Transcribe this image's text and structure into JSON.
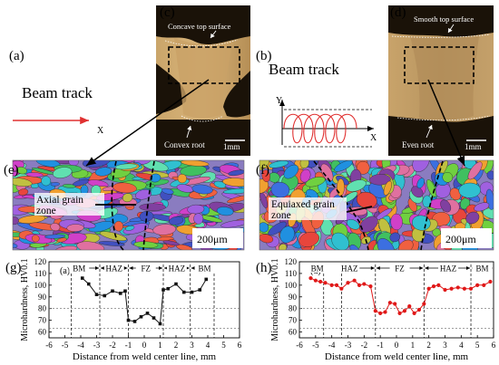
{
  "panels": {
    "a": {
      "label": "(a)",
      "track_title": "Beam track",
      "axis": "X"
    },
    "b": {
      "label": "(b)",
      "track_title": "Beam track",
      "axis_x": "X",
      "axis_y": "Y"
    },
    "c": {
      "label": "(c)",
      "top_note": "Concave top surface",
      "root_note": "Convex root",
      "scale_bar": "1mm"
    },
    "d": {
      "label": "(d)",
      "top_note": "Smooth top surface",
      "root_note": "Even root",
      "scale_bar": "1mm"
    },
    "e": {
      "label": "(e)",
      "zone_label_1": "Axial grain",
      "zone_label_2": "zone",
      "scale_bar": "200μm"
    },
    "f": {
      "label": "(f)",
      "zone_label_1": "Equiaxed grain",
      "zone_label_2": "zone",
      "scale_bar": "200μm"
    },
    "g": {
      "label": "(g)",
      "inset_label": "(a)"
    },
    "h": {
      "label": "(h)",
      "inset_label": "(d)"
    }
  },
  "colors": {
    "line_a": "#e03030",
    "marker_g": "#111111",
    "marker_h": "#e01818",
    "weld_gold": "#b89560",
    "weld_dark": "#1a1208"
  },
  "chart_data": [
    {
      "type": "line",
      "panel": "g",
      "ylabel": "Microhardness, HV0.1",
      "xlabel": "Distance from weld center line, mm",
      "xlim": [
        -6,
        6
      ],
      "ylim": [
        55,
        120
      ],
      "xticks": [
        "-6",
        "-5",
        "-4",
        "-3",
        "-2",
        "-1",
        "0",
        "1",
        "2",
        "3",
        "4",
        "5",
        "6"
      ],
      "yticks": [
        "60",
        "70",
        "80",
        "90",
        "100",
        "110",
        "120"
      ],
      "hlines": [
        80,
        63
      ],
      "zone_bounds": [
        -4.6,
        -2.8,
        -1,
        1.2,
        2.9,
        4.4
      ],
      "zones": [
        {
          "name": "BM",
          "from": -4.6,
          "to": -2.8,
          "text_at": -4.1
        },
        {
          "name": "HAZ",
          "from": -2.8,
          "to": -1,
          "text_at": -1.9
        },
        {
          "name": "FZ",
          "from": -1,
          "to": 1.2,
          "text_at": 0.1
        },
        {
          "name": "HAZ",
          "from": 1.2,
          "to": 2.9,
          "text_at": 2.05
        },
        {
          "name": "BM",
          "from": 2.9,
          "to": 4.4,
          "text_at": 3.8
        }
      ],
      "series": [
        {
          "x": [
            -3.9,
            -3.5,
            -3.0,
            -2.5,
            -2.0,
            -1.5,
            -1.2,
            -1.0,
            -0.6,
            -0.2,
            0.2,
            0.6,
            1.0,
            1.2,
            1.5,
            2.0,
            2.5,
            3.0,
            3.5,
            3.9
          ],
          "y": [
            106,
            101,
            92,
            91,
            95,
            93,
            95,
            70,
            69,
            73,
            76,
            72,
            67,
            96,
            97,
            101,
            94,
            94,
            96,
            105
          ]
        }
      ]
    },
    {
      "type": "line",
      "panel": "h",
      "ylabel": "Microhardness, HV0.1",
      "xlabel": "Distance from weld center line, mm",
      "xlim": [
        -6,
        6
      ],
      "ylim": [
        55,
        120
      ],
      "xticks": [
        "-6",
        "-5",
        "-4",
        "-3",
        "-2",
        "-1",
        "0",
        "1",
        "2",
        "3",
        "4",
        "5",
        "6"
      ],
      "yticks": [
        "60",
        "70",
        "80",
        "90",
        "100",
        "110",
        "120"
      ],
      "hlines": [
        80,
        63
      ],
      "zone_bounds": [
        -4.5,
        -3.4,
        -1.3,
        1.7,
        4.6
      ],
      "zones": [
        {
          "name": "BM",
          "from": -5.3,
          "to": -4.5,
          "text_at": -4.9
        },
        {
          "name": "HAZ",
          "from": -3.4,
          "to": -1.3,
          "text_at": -2.9
        },
        {
          "name": "FZ",
          "from": -1.3,
          "to": 1.7,
          "text_at": 0.2
        },
        {
          "name": "HAZ",
          "from": 1.7,
          "to": 4.6,
          "text_at": 3.2
        },
        {
          "name": "BM",
          "from": 4.6,
          "to": 6.0,
          "text_at": 5.3
        }
      ],
      "series": [
        {
          "x": [
            -5.3,
            -5.0,
            -4.7,
            -4.4,
            -4.0,
            -3.7,
            -3.4,
            -3.0,
            -2.6,
            -2.3,
            -2.0,
            -1.6,
            -1.3,
            -1.0,
            -0.7,
            -0.4,
            -0.1,
            0.2,
            0.5,
            0.8,
            1.1,
            1.4,
            1.7,
            2.0,
            2.3,
            2.6,
            3.0,
            3.4,
            3.8,
            4.2,
            4.6,
            5.0,
            5.4,
            5.8
          ],
          "y": [
            106,
            104,
            103,
            102,
            100,
            100,
            97,
            102,
            104,
            100,
            101,
            99,
            78,
            76,
            77,
            85,
            84,
            76,
            78,
            82,
            76,
            79,
            84,
            97,
            99,
            100,
            96,
            97,
            98,
            97,
            97,
            100,
            100,
            103
          ]
        }
      ]
    }
  ]
}
